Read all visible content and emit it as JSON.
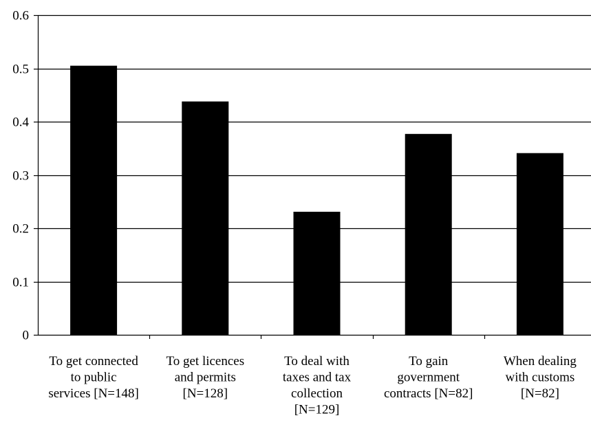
{
  "chart_data": {
    "type": "bar",
    "categories": [
      [
        "To get connected",
        "to public",
        "services [N=148]"
      ],
      [
        "To get licences",
        "and permits",
        "[N=128]"
      ],
      [
        "To deal with",
        "taxes and tax",
        "collection",
        "[N=129]"
      ],
      [
        "To gain",
        "government",
        "contracts [N=82]"
      ],
      [
        "When dealing",
        "with customs",
        "[N=82]"
      ]
    ],
    "values": [
      0.505,
      0.438,
      0.231,
      0.377,
      0.341
    ],
    "ylim": [
      0,
      0.6
    ],
    "yticks": [
      "0",
      "0.1",
      "0.2",
      "0.3",
      "0.4",
      "0.5",
      "0.6"
    ],
    "grid": true,
    "bar_color": "#000000",
    "grid_color": "#000000"
  }
}
